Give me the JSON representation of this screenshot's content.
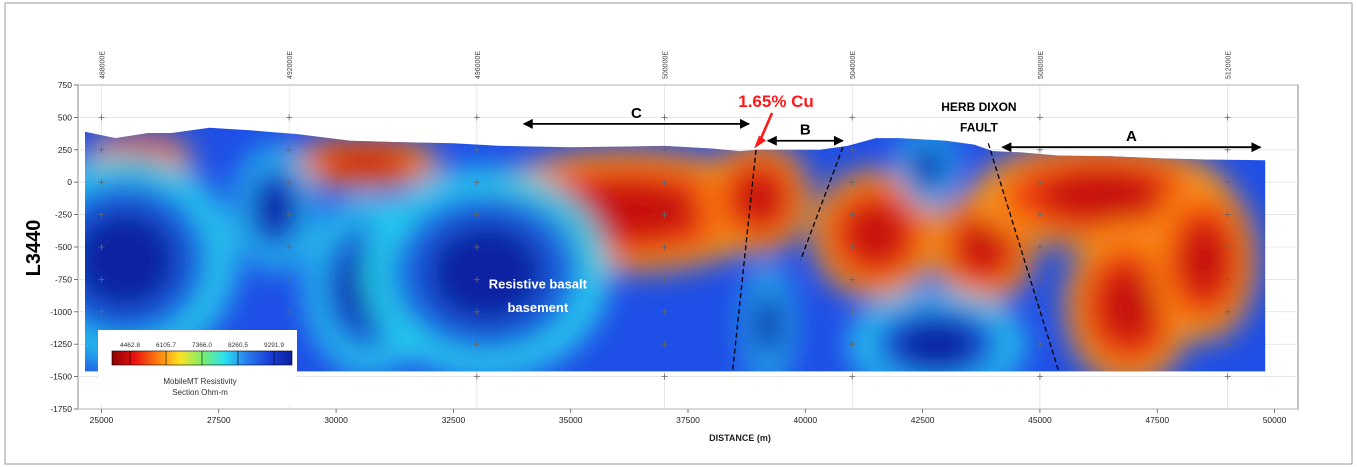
{
  "chart_data": {
    "type": "heatmap",
    "title": "",
    "ylabel": "L3440",
    "xlabel": "DISTANCE (m)",
    "xlim": [
      24500,
      50500
    ],
    "ylim": [
      -1750,
      750
    ],
    "xticks": [
      25000,
      27500,
      30000,
      32500,
      35000,
      37500,
      40000,
      42500,
      45000,
      47500,
      50000
    ],
    "xtick_labels": [
      "25000",
      "27500",
      "30000",
      "32500",
      "35000",
      "37500",
      "40000",
      "42500",
      "45000",
      "47500",
      "50000"
    ],
    "yticks": [
      750,
      500,
      250,
      0,
      -250,
      -500,
      -750,
      -1000,
      -1250,
      -1500,
      -1750
    ],
    "ytick_labels": [
      "750",
      "500",
      "250",
      "0",
      "-250",
      "-500",
      "-750",
      "-1000",
      "-1250",
      "-1500",
      "-1750"
    ],
    "easting_ticks": [
      {
        "x": 25000,
        "label": "488000E"
      },
      {
        "x": 29000,
        "label": "492000E"
      },
      {
        "x": 33000,
        "label": "496000E"
      },
      {
        "x": 37000,
        "label": "500000E"
      },
      {
        "x": 41000,
        "label": "504000E"
      },
      {
        "x": 45000,
        "label": "508000E"
      },
      {
        "x": 49000,
        "label": "512000E"
      }
    ],
    "section_extent": {
      "x": [
        24650,
        49800
      ],
      "bottom": -1460
    },
    "topography": [
      [
        24650,
        390
      ],
      [
        25300,
        340
      ],
      [
        26000,
        380
      ],
      [
        26500,
        380
      ],
      [
        27300,
        420
      ],
      [
        28200,
        400
      ],
      [
        29200,
        370
      ],
      [
        30300,
        320
      ],
      [
        31200,
        310
      ],
      [
        32500,
        300
      ],
      [
        33500,
        280
      ],
      [
        35000,
        270
      ],
      [
        36000,
        275
      ],
      [
        37000,
        280
      ],
      [
        38000,
        260
      ],
      [
        38600,
        240
      ],
      [
        39000,
        250
      ],
      [
        39600,
        250
      ],
      [
        40300,
        250
      ],
      [
        40900,
        280
      ],
      [
        41500,
        340
      ],
      [
        42000,
        340
      ],
      [
        43000,
        320
      ],
      [
        43600,
        290
      ],
      [
        44000,
        240
      ],
      [
        44600,
        230
      ],
      [
        45400,
        205
      ],
      [
        46500,
        200
      ],
      [
        47500,
        185
      ],
      [
        48500,
        175
      ],
      [
        49800,
        170
      ]
    ],
    "resistivity_zones": [
      {
        "type": "conductive",
        "x": 25800,
        "y": 180,
        "rx": 900,
        "ry": 160
      },
      {
        "type": "conductive",
        "x": 30600,
        "y": 150,
        "rx": 1300,
        "ry": 160
      },
      {
        "type": "conductive",
        "x": 36200,
        "y": -220,
        "rx": 2600,
        "ry": 380
      },
      {
        "type": "conductive",
        "x": 39000,
        "y": -120,
        "rx": 900,
        "ry": 350
      },
      {
        "type": "conductive",
        "x": 41500,
        "y": -400,
        "rx": 1100,
        "ry": 400
      },
      {
        "type": "conductive",
        "x": 43800,
        "y": -500,
        "rx": 900,
        "ry": 350
      },
      {
        "type": "conductive",
        "x": 46300,
        "y": -100,
        "rx": 2200,
        "ry": 330
      },
      {
        "type": "conductive",
        "x": 46900,
        "y": -950,
        "rx": 1100,
        "ry": 500
      },
      {
        "type": "conductive",
        "x": 48500,
        "y": -600,
        "rx": 900,
        "ry": 500
      },
      {
        "type": "resistive",
        "x": 25500,
        "y": -600,
        "rx": 1900,
        "ry": 650
      },
      {
        "type": "resistive",
        "x": 28700,
        "y": -200,
        "rx": 700,
        "ry": 380
      },
      {
        "type": "resistive",
        "x": 30700,
        "y": -800,
        "rx": 1100,
        "ry": 550
      },
      {
        "type": "resistive",
        "x": 33200,
        "y": -700,
        "rx": 2100,
        "ry": 650
      },
      {
        "type": "resistive",
        "x": 39200,
        "y": -1100,
        "rx": 450,
        "ry": 350
      },
      {
        "type": "resistive",
        "x": 42600,
        "y": 120,
        "rx": 500,
        "ry": 250
      },
      {
        "type": "resistive",
        "x": 42800,
        "y": -1250,
        "rx": 1500,
        "ry": 330
      }
    ],
    "faults": [
      {
        "x1": 38950,
        "y1": 250,
        "x2": 38450,
        "y2": -1460
      },
      {
        "x1": 40800,
        "y1": 270,
        "x2": 39900,
        "y2": -600
      },
      {
        "x1": 43900,
        "y1": 300,
        "x2": 45400,
        "y2": -1460
      }
    ],
    "arrows": [
      {
        "label": "C",
        "x1": 34000,
        "x2": 38800,
        "y": 450
      },
      {
        "label": "B",
        "x1": 39200,
        "x2": 40800,
        "y": 320
      },
      {
        "label": "A",
        "x1": 44200,
        "x2": 49700,
        "y": 270
      }
    ],
    "callout": {
      "label": "1.65% Cu",
      "color": "#ff1a1a",
      "target_x": 38950,
      "target_y": 260
    },
    "annotations": [
      {
        "key": "basalt_1",
        "text": "Resistive basalt",
        "x": 34300,
        "y": -820
      },
      {
        "key": "basalt_2",
        "text": "basement",
        "x": 34300,
        "y": -1000
      },
      {
        "key": "fault_1",
        "text": "HERB DIXON",
        "x": 43700,
        "y": 550
      },
      {
        "key": "fault_2",
        "text": "FAULT",
        "x": 43700,
        "y": 390
      }
    ],
    "colorscale": {
      "values": [
        "4462.8",
        "6105.7",
        "7366.0",
        "8260.5",
        "9291.9"
      ],
      "colors": [
        "#8b0000",
        "#e8110f",
        "#ff7a10",
        "#ffe020",
        "#7cf06a",
        "#2ae0f0",
        "#2a7cf0",
        "#1a3fd8",
        "#0a1fa0"
      ],
      "label_line1": "MobileMT Resistivity",
      "label_line2": "Section Ohm-m"
    },
    "background_color": "#1f4fe6"
  }
}
